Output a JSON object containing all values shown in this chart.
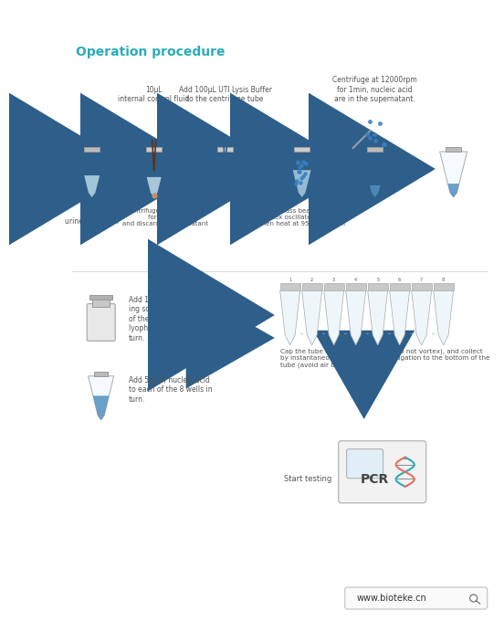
{
  "title": "Operation procedure",
  "title_color": "#2AACB8",
  "title_fontsize": 10,
  "bg_color": "#FFFFFF",
  "text_color": "#555555",
  "arrow_color": "#2D5F8A",
  "highlight_color": "#2AACB8",
  "step1_label": "1mL\nurine specimen",
  "step2_label": "10μL\ninternal control fluid",
  "step2b_label": "Centrifuge at 12000rpm\nfor 10min,\nand discarded supernatant",
  "step3_label": "Add 100μL UTI Lysis Buffer\nto the centrifuge tube",
  "step4_label": "Pour the glass beads into tube ,\nvortex oscillate for 2min,\nthen heat at 95℃ for 2min",
  "step5_label": "Centrifuge at 12000rpm\nfor 1min, nucleic acid\nare in the supernatant.",
  "step6_label": "Add 15μL of UTI dissolv-\ning solution to each well\nof the eight tubes of\nlyophilized powder in\nturn.",
  "step7_label": "Add 5μL of nucleic acid\nto each of the 8 wells in\nturn.",
  "step8_label": "Cap the tube tightly, mix by hand (do not vortex), and collect\nby instantaneous low-speed centrifugation to the bottom of the\ntube (avoid air bubbles).",
  "step9_label": "Start testing",
  "website": "www.bioteke.cn"
}
